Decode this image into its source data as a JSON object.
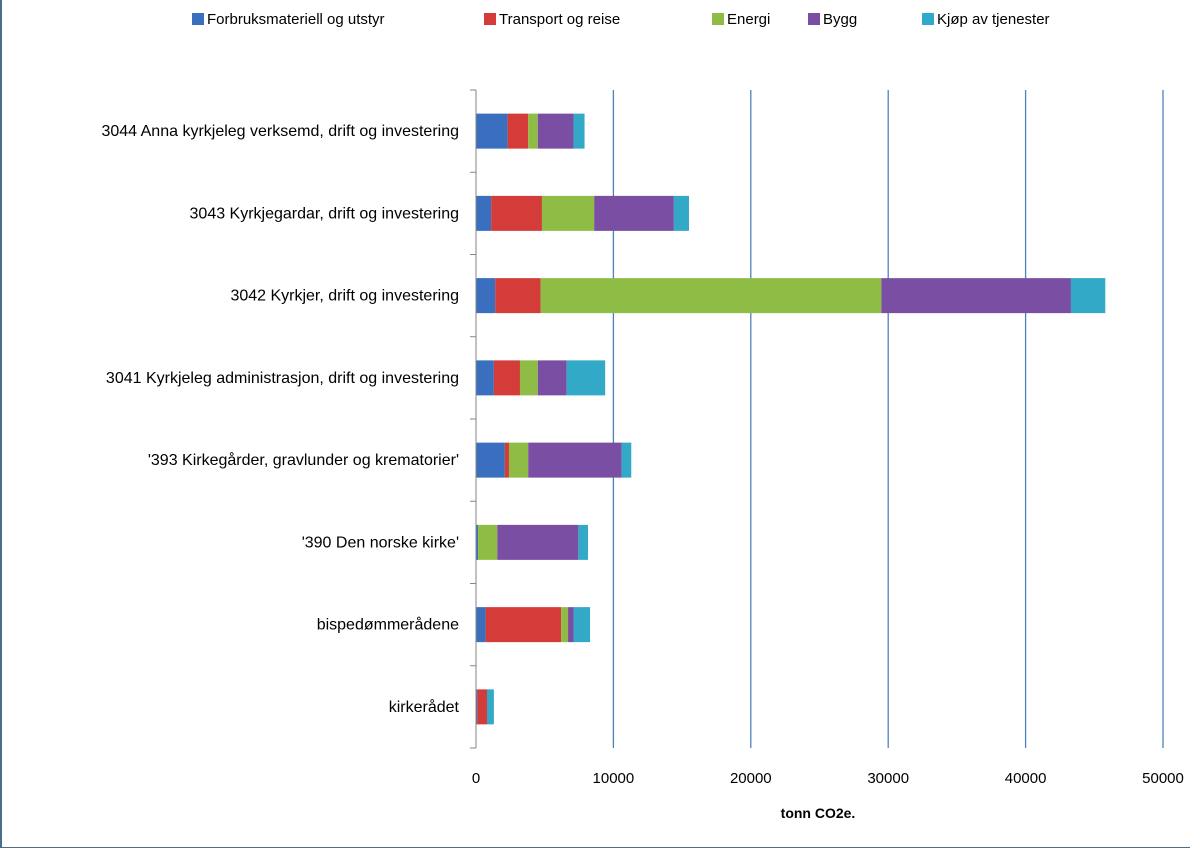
{
  "chart_data": {
    "type": "bar",
    "orientation": "horizontal",
    "stacked": true,
    "categories": [
      "3044 Anna kyrkjeleg verksemd, drift og investering",
      "3043 Kyrkjegardar, drift og investering",
      "3042 Kyrkjer, drift og investering",
      "3041 Kyrkjeleg administrasjon, drift og investering",
      "'393 Kirkegårder, gravlunder og krematorier'",
      "'390 Den norske kirke'",
      "bispedømmerådene",
      "kirkerådet"
    ],
    "series": [
      {
        "name": "Forbruksmateriell og utstyr",
        "color": "#3a6fbf",
        "values": [
          2300,
          1100,
          1400,
          1300,
          2100,
          150,
          700,
          100
        ]
      },
      {
        "name": "Transport og reise",
        "color": "#d43c3a",
        "values": [
          1500,
          3700,
          3300,
          1900,
          300,
          0,
          5500,
          700
        ]
      },
      {
        "name": "Energi",
        "color": "#8fbc45",
        "values": [
          700,
          3800,
          24800,
          1300,
          1400,
          1400,
          500,
          0
        ]
      },
      {
        "name": "Bygg",
        "color": "#7a4ea3",
        "values": [
          2600,
          5800,
          13800,
          2100,
          6800,
          5900,
          400,
          0
        ]
      },
      {
        "name": "Kjøp av tjenester",
        "color": "#31a9c7",
        "values": [
          800,
          1100,
          2500,
          2800,
          700,
          700,
          1200,
          500
        ]
      }
    ],
    "xlabel": "tonn CO2e.",
    "xlim": [
      0,
      50000
    ],
    "xticks": [
      "0",
      "10000",
      "20000",
      "30000",
      "40000",
      "50000"
    ],
    "grid": "vertical",
    "legend": "top"
  }
}
